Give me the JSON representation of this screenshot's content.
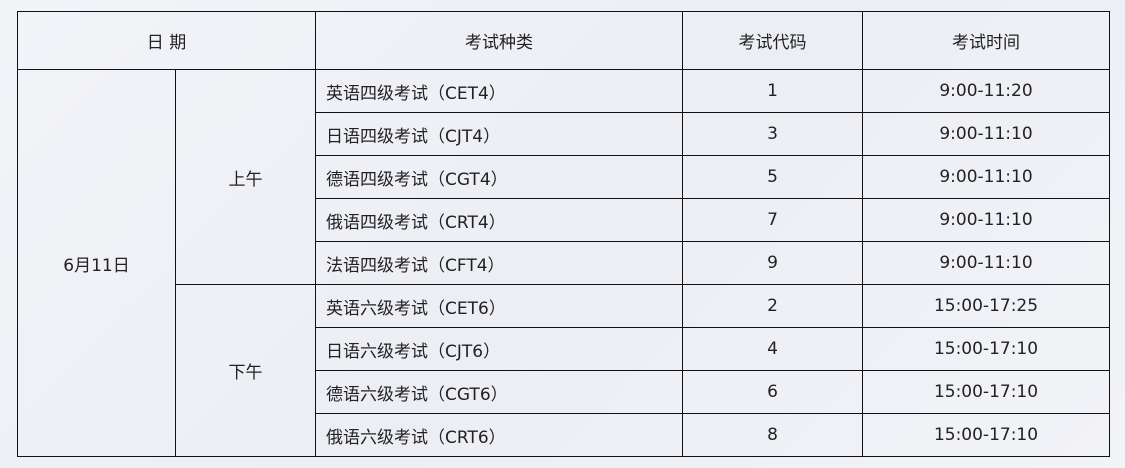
{
  "headers": {
    "date": "日 期",
    "type": "考试种类",
    "code": "考试代码",
    "time": "考试时间"
  },
  "date": "6月11日",
  "sessions": [
    {
      "label": "上午",
      "exams": [
        {
          "name": "英语四级考试（CET4）",
          "code": "1",
          "time": "9:00-11:20"
        },
        {
          "name": "日语四级考试（CJT4）",
          "code": "3",
          "time": "9:00-11:10"
        },
        {
          "name": "德语四级考试（CGT4）",
          "code": "5",
          "time": "9:00-11:10"
        },
        {
          "name": "俄语四级考试（CRT4）",
          "code": "7",
          "time": "9:00-11:10"
        },
        {
          "name": "法语四级考试（CFT4）",
          "code": "9",
          "time": "9:00-11:10"
        }
      ]
    },
    {
      "label": "下午",
      "exams": [
        {
          "name": "英语六级考试（CET6）",
          "code": "2",
          "time": "15:00-17:25"
        },
        {
          "name": "日语六级考试（CJT6）",
          "code": "4",
          "time": "15:00-17:10"
        },
        {
          "name": "德语六级考试（CGT6）",
          "code": "6",
          "time": "15:00-17:10"
        },
        {
          "name": "俄语六级考试（CRT6）",
          "code": "8",
          "time": "15:00-17:10"
        }
      ]
    }
  ]
}
